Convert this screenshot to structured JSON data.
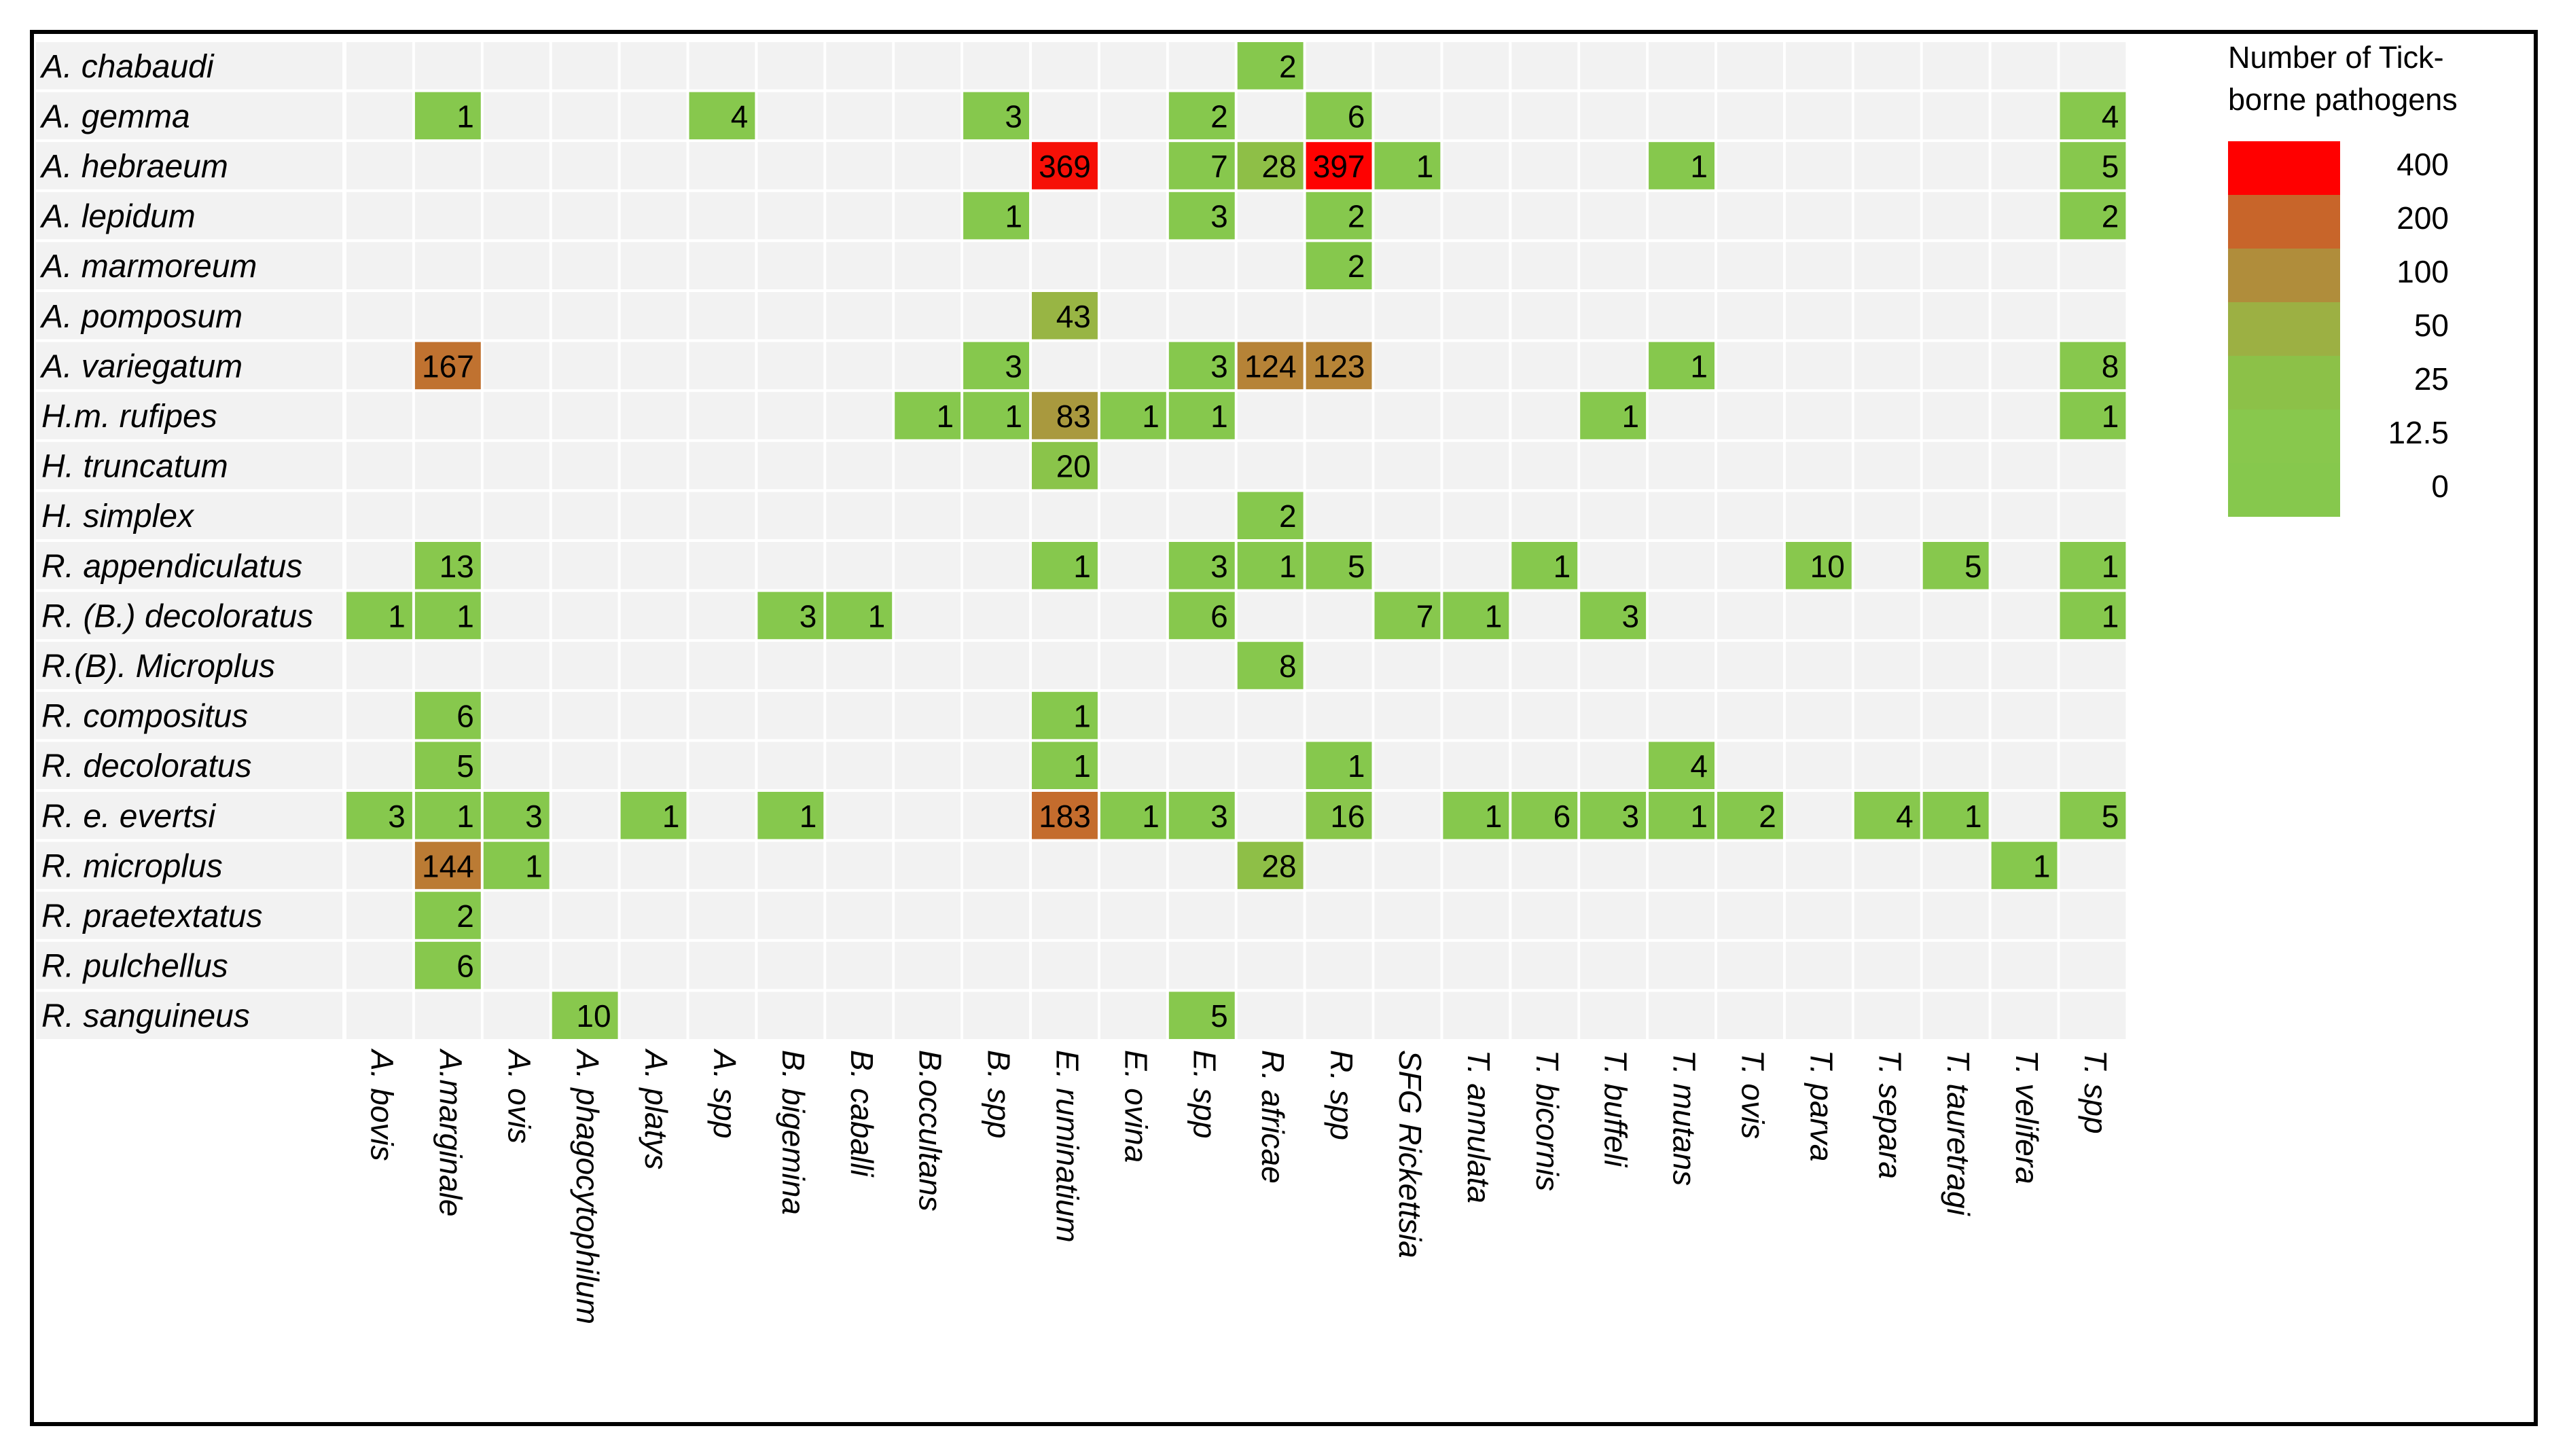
{
  "chart_data": {
    "type": "heatmap",
    "title": "",
    "xlabel": "",
    "ylabel": "",
    "rows": [
      "A. chabaudi",
      "A. gemma",
      "A. hebraeum",
      "A. lepidum",
      "A. marmoreum",
      "A. pomposum",
      "A. variegatum",
      "H.m. rufipes",
      "H. truncatum",
      "H. simplex",
      "R. appendiculatus",
      "R. (B.) decoloratus",
      "R.(B). Microplus",
      "R. compositus",
      "R. decoloratus",
      "R. e. evertsi",
      "R. microplus",
      "R. praetextatus",
      "R. pulchellus",
      "R. sanguineus"
    ],
    "columns": [
      "A. bovis",
      "A.marginale",
      "A. ovis",
      "A. phagocytophilum",
      "A. platys",
      "A. spp",
      "B. bigemina",
      "B. caballi",
      "B.occultans",
      "B. spp",
      "E. ruminatium",
      "E. ovina",
      "E. spp",
      "R. africae",
      "R. spp",
      "SFG Rickettsia",
      "T. annulata",
      "T. bicornis",
      "T. buffeli",
      "T. mutans",
      "T. ovis",
      "T. parva",
      "T. separa",
      "T. tauretragi",
      "T. velifera",
      "T. spp"
    ],
    "values": [
      [
        null,
        null,
        null,
        null,
        null,
        null,
        null,
        null,
        null,
        null,
        null,
        null,
        null,
        2,
        null,
        null,
        null,
        null,
        null,
        null,
        null,
        null,
        null,
        null,
        null,
        null
      ],
      [
        null,
        1,
        null,
        null,
        null,
        4,
        null,
        null,
        null,
        3,
        null,
        null,
        2,
        null,
        6,
        null,
        null,
        null,
        null,
        null,
        null,
        null,
        null,
        null,
        null,
        4
      ],
      [
        null,
        null,
        null,
        null,
        null,
        null,
        null,
        null,
        null,
        null,
        369,
        null,
        7,
        28,
        397,
        1,
        null,
        null,
        null,
        1,
        null,
        null,
        null,
        null,
        null,
        5
      ],
      [
        null,
        null,
        null,
        null,
        null,
        null,
        null,
        null,
        null,
        1,
        null,
        null,
        3,
        null,
        2,
        null,
        null,
        null,
        null,
        null,
        null,
        null,
        null,
        null,
        null,
        2
      ],
      [
        null,
        null,
        null,
        null,
        null,
        null,
        null,
        null,
        null,
        null,
        null,
        null,
        null,
        null,
        2,
        null,
        null,
        null,
        null,
        null,
        null,
        null,
        null,
        null,
        null,
        null
      ],
      [
        null,
        null,
        null,
        null,
        null,
        null,
        null,
        null,
        null,
        null,
        43,
        null,
        null,
        null,
        null,
        null,
        null,
        null,
        null,
        null,
        null,
        null,
        null,
        null,
        null,
        null
      ],
      [
        null,
        167,
        null,
        null,
        null,
        null,
        null,
        null,
        null,
        3,
        null,
        null,
        3,
        124,
        123,
        null,
        null,
        null,
        null,
        1,
        null,
        null,
        null,
        null,
        null,
        8
      ],
      [
        null,
        null,
        null,
        null,
        null,
        null,
        null,
        null,
        1,
        1,
        83,
        1,
        1,
        null,
        null,
        null,
        null,
        null,
        1,
        null,
        null,
        null,
        null,
        null,
        null,
        1
      ],
      [
        null,
        null,
        null,
        null,
        null,
        null,
        null,
        null,
        null,
        null,
        20,
        null,
        null,
        null,
        null,
        null,
        null,
        null,
        null,
        null,
        null,
        null,
        null,
        null,
        null,
        null
      ],
      [
        null,
        null,
        null,
        null,
        null,
        null,
        null,
        null,
        null,
        null,
        null,
        null,
        null,
        2,
        null,
        null,
        null,
        null,
        null,
        null,
        null,
        null,
        null,
        null,
        null,
        null
      ],
      [
        null,
        13,
        null,
        null,
        null,
        null,
        null,
        null,
        null,
        null,
        1,
        null,
        3,
        1,
        5,
        null,
        null,
        1,
        null,
        null,
        null,
        10,
        null,
        5,
        null,
        1
      ],
      [
        1,
        1,
        null,
        null,
        null,
        null,
        3,
        1,
        null,
        null,
        null,
        null,
        6,
        null,
        null,
        7,
        1,
        null,
        3,
        null,
        null,
        null,
        null,
        null,
        null,
        1
      ],
      [
        null,
        null,
        null,
        null,
        null,
        null,
        null,
        null,
        null,
        null,
        null,
        null,
        null,
        8,
        null,
        null,
        null,
        null,
        null,
        null,
        null,
        null,
        null,
        null,
        null,
        null
      ],
      [
        null,
        6,
        null,
        null,
        null,
        null,
        null,
        null,
        null,
        null,
        1,
        null,
        null,
        null,
        null,
        null,
        null,
        null,
        null,
        null,
        null,
        null,
        null,
        null,
        null,
        null
      ],
      [
        null,
        5,
        null,
        null,
        null,
        null,
        null,
        null,
        null,
        null,
        1,
        null,
        null,
        null,
        1,
        null,
        null,
        null,
        null,
        4,
        null,
        null,
        null,
        null,
        null,
        null
      ],
      [
        3,
        1,
        3,
        null,
        1,
        null,
        1,
        null,
        null,
        null,
        183,
        1,
        3,
        null,
        16,
        null,
        1,
        6,
        3,
        1,
        2,
        null,
        4,
        1,
        null,
        5
      ],
      [
        null,
        144,
        1,
        null,
        null,
        null,
        null,
        null,
        null,
        null,
        null,
        null,
        null,
        28,
        null,
        null,
        null,
        null,
        null,
        null,
        null,
        null,
        null,
        null,
        1,
        null
      ],
      [
        null,
        2,
        null,
        null,
        null,
        null,
        null,
        null,
        null,
        null,
        null,
        null,
        null,
        null,
        null,
        null,
        null,
        null,
        null,
        null,
        null,
        null,
        null,
        null,
        null,
        null
      ],
      [
        null,
        6,
        null,
        null,
        null,
        null,
        null,
        null,
        null,
        null,
        null,
        null,
        null,
        null,
        null,
        null,
        null,
        null,
        null,
        null,
        null,
        null,
        null,
        null,
        null,
        null
      ],
      [
        null,
        null,
        null,
        10,
        null,
        null,
        null,
        null,
        null,
        null,
        null,
        null,
        5,
        null,
        null,
        null,
        null,
        null,
        null,
        null,
        null,
        null,
        null,
        null,
        null,
        null
      ]
    ],
    "legend": {
      "title_lines": [
        "Number of Tick-",
        "borne pathogens"
      ],
      "ticks": [
        "400",
        "200",
        "100",
        "50",
        "25",
        "12.5",
        "0"
      ],
      "colors": [
        "#ff0000",
        "#c8652a",
        "#b08d3b",
        "#9cb043",
        "#8cc148",
        "#88c84d",
        "#86c84d"
      ],
      "placement": "top-right"
    },
    "colorscale": [
      {
        "value": 0,
        "color": "#86c84d"
      },
      {
        "value": 12.5,
        "color": "#88c84d"
      },
      {
        "value": 25,
        "color": "#8cc148"
      },
      {
        "value": 50,
        "color": "#9cb043"
      },
      {
        "value": 100,
        "color": "#b08d3b"
      },
      {
        "value": 200,
        "color": "#c8652a"
      },
      {
        "value": 400,
        "color": "#ff0000"
      }
    ],
    "empty_cell_color": "#f2f2f2",
    "grid": true
  }
}
